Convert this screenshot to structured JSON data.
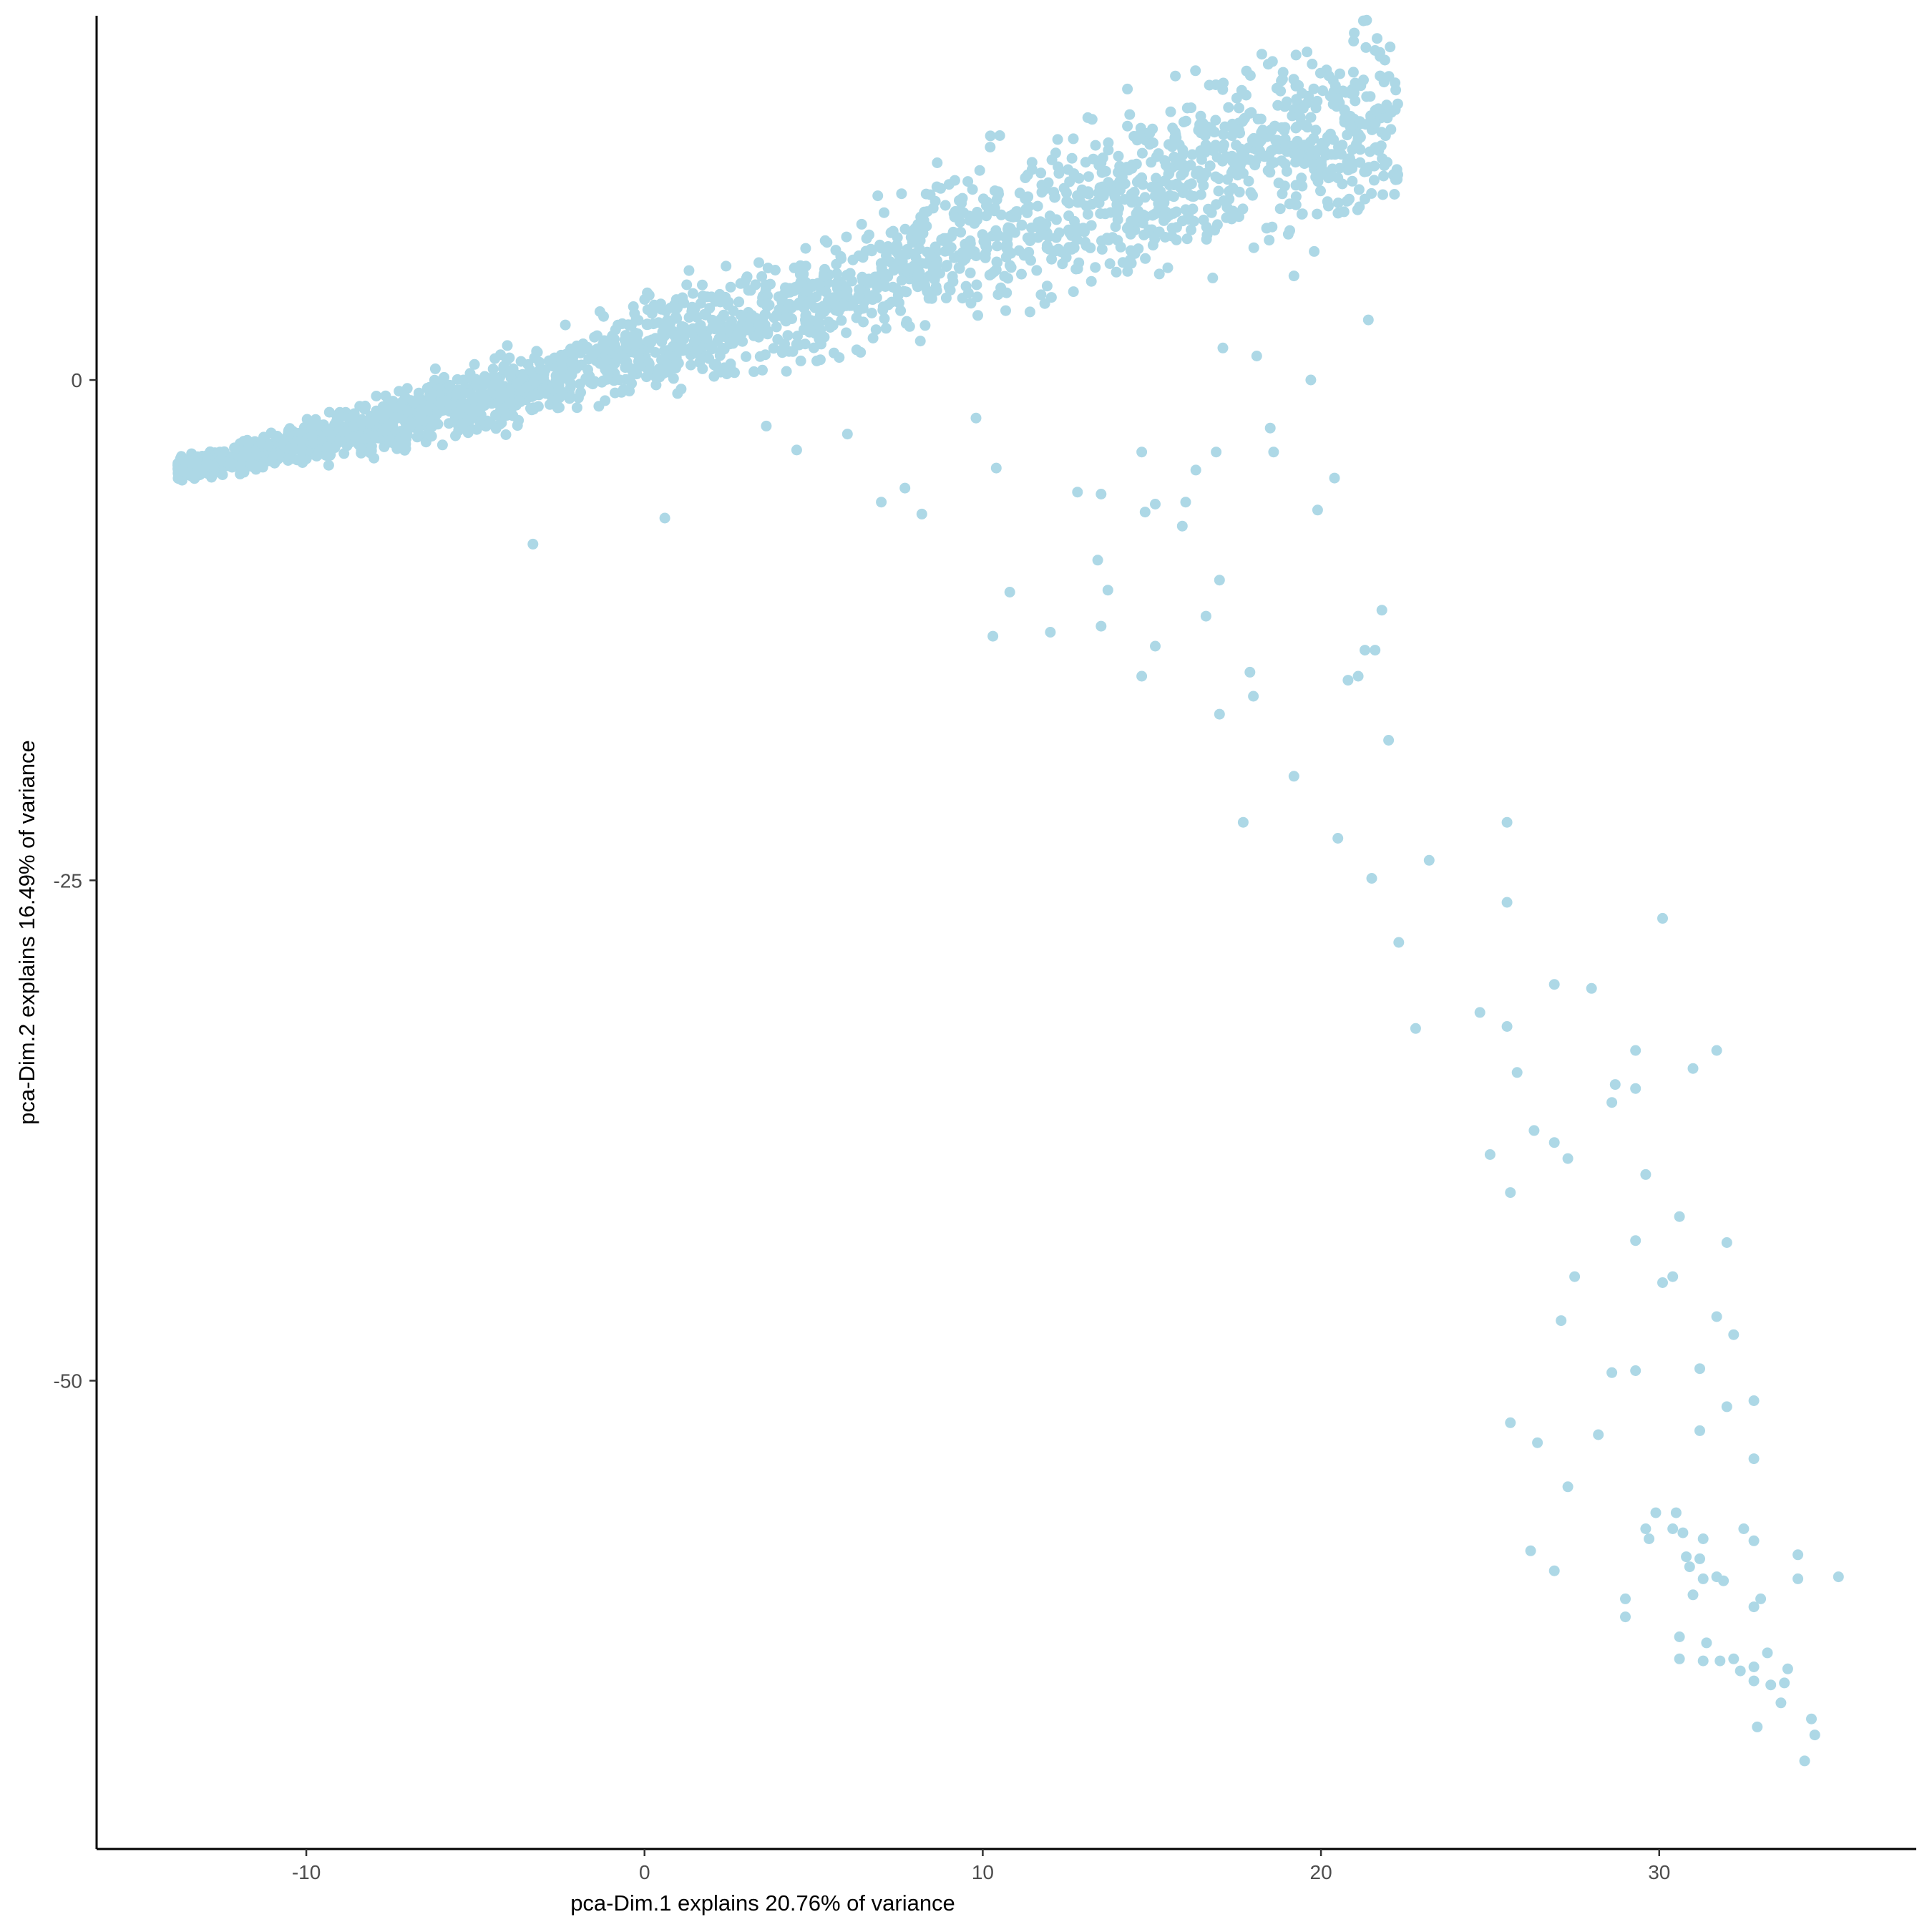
{
  "chart_data": {
    "type": "scatter",
    "title": "",
    "xlabel": "pca-Dim.1 explains 20.76% of variance",
    "ylabel": "pca-Dim.2 explains 16.49% of variance",
    "xlim": [
      -16.2,
      37.6
    ],
    "ylim": [
      -73.4,
      18.2
    ],
    "x_ticks": [
      -10,
      0,
      10,
      20,
      30
    ],
    "x_tick_labels": [
      "-10",
      "0",
      "10",
      "20",
      "30"
    ],
    "y_ticks": [
      0,
      -25,
      -50
    ],
    "y_tick_labels": [
      "0",
      "-25",
      "-50"
    ],
    "grid": false,
    "legend": "none",
    "point_color": "#ADD8E6",
    "main_cluster": {
      "description_of_trend": "dense band of several thousand points rising roughly linearly",
      "x_range": [
        -13.8,
        22.3
      ],
      "spine": [
        [
          -13.5,
          -4.4
        ],
        [
          -10,
          -3.2
        ],
        [
          -5,
          -1.0
        ],
        [
          0,
          1.6
        ],
        [
          5,
          3.8
        ],
        [
          10,
          7.2
        ],
        [
          15,
          9.6
        ],
        [
          18,
          12.0
        ],
        [
          22,
          12.6
        ]
      ]
    },
    "outliers": [
      [
        -3.3,
        -8.2
      ],
      [
        0.6,
        -6.9
      ],
      [
        4.5,
        -3.5
      ],
      [
        6.0,
        -2.7
      ],
      [
        3.6,
        -2.3
      ],
      [
        7.0,
        -6.1
      ],
      [
        7.7,
        -5.4
      ],
      [
        8.2,
        -6.7
      ],
      [
        9.8,
        -1.9
      ],
      [
        10.4,
        -4.4
      ],
      [
        10.8,
        -10.6
      ],
      [
        10.3,
        -12.8
      ],
      [
        12.0,
        -12.6
      ],
      [
        12.8,
        -5.6
      ],
      [
        13.5,
        -5.7
      ],
      [
        13.4,
        -9.0
      ],
      [
        13.7,
        -10.5
      ],
      [
        13.5,
        -12.3
      ],
      [
        14.7,
        -14.8
      ],
      [
        15.1,
        -13.3
      ],
      [
        14.8,
        -6.6
      ],
      [
        15.1,
        -6.2
      ],
      [
        15.9,
        -7.3
      ],
      [
        16.0,
        -6.1
      ],
      [
        14.7,
        -3.6
      ],
      [
        16.3,
        -4.5
      ],
      [
        16.9,
        -3.6
      ],
      [
        16.6,
        -11.8
      ],
      [
        17.0,
        -10.0
      ],
      [
        17.9,
        -14.6
      ],
      [
        18.0,
        -15.8
      ],
      [
        17.0,
        -16.7
      ],
      [
        18.5,
        -2.4
      ],
      [
        18.6,
        -3.6
      ],
      [
        19.9,
        -6.5
      ],
      [
        20.4,
        -4.9
      ],
      [
        19.2,
        -19.8
      ],
      [
        17.7,
        -22.1
      ],
      [
        20.5,
        -22.9
      ],
      [
        20.8,
        -15.0
      ],
      [
        21.1,
        -14.8
      ],
      [
        21.3,
        -13.5
      ],
      [
        21.6,
        -13.5
      ],
      [
        21.8,
        -11.5
      ],
      [
        22.0,
        -18.0
      ],
      [
        21.5,
        -24.9
      ],
      [
        22.3,
        -28.1
      ],
      [
        22.8,
        -32.4
      ],
      [
        23.2,
        -24.0
      ],
      [
        19.7,
        0.0
      ],
      [
        21.4,
        3.0
      ],
      [
        19.2,
        5.2
      ],
      [
        17.1,
        1.6
      ],
      [
        18.1,
        1.2
      ],
      [
        16.8,
        5.1
      ],
      [
        25.5,
        -22.1
      ],
      [
        25.5,
        -26.1
      ],
      [
        24.7,
        -31.6
      ],
      [
        25.5,
        -32.3
      ],
      [
        25.8,
        -34.6
      ],
      [
        26.9,
        -30.2
      ],
      [
        28.0,
        -30.4
      ],
      [
        25.0,
        -38.7
      ],
      [
        26.3,
        -37.5
      ],
      [
        25.6,
        -40.6
      ],
      [
        26.9,
        -38.1
      ],
      [
        27.3,
        -38.9
      ],
      [
        27.1,
        -47.0
      ],
      [
        27.5,
        -44.8
      ],
      [
        28.7,
        -35.2
      ],
      [
        28.6,
        -36.1
      ],
      [
        29.3,
        -33.5
      ],
      [
        29.3,
        -35.4
      ],
      [
        29.6,
        -39.7
      ],
      [
        29.3,
        -43.0
      ],
      [
        30.1,
        -26.9
      ],
      [
        30.6,
        -41.8
      ],
      [
        30.1,
        -45.1
      ],
      [
        30.4,
        -44.8
      ],
      [
        31.0,
        -34.4
      ],
      [
        31.7,
        -33.5
      ],
      [
        32.0,
        -43.1
      ],
      [
        31.7,
        -46.8
      ],
      [
        32.2,
        -47.7
      ],
      [
        31.2,
        -49.4
      ],
      [
        28.6,
        -49.6
      ],
      [
        29.3,
        -49.5
      ],
      [
        28.2,
        -52.7
      ],
      [
        26.4,
        -53.1
      ],
      [
        25.6,
        -52.1
      ],
      [
        27.3,
        -55.3
      ],
      [
        26.2,
        -58.5
      ],
      [
        26.9,
        -59.5
      ],
      [
        29.0,
        -60.9
      ],
      [
        29.0,
        -61.8
      ],
      [
        29.9,
        -56.6
      ],
      [
        29.6,
        -57.4
      ],
      [
        29.7,
        -57.9
      ],
      [
        30.4,
        -57.4
      ],
      [
        30.5,
        -56.6
      ],
      [
        30.7,
        -57.6
      ],
      [
        30.8,
        -58.8
      ],
      [
        30.9,
        -59.3
      ],
      [
        31.3,
        -57.9
      ],
      [
        31.2,
        -58.9
      ],
      [
        31.0,
        -60.7
      ],
      [
        31.3,
        -59.9
      ],
      [
        31.7,
        -59.8
      ],
      [
        31.9,
        -60.0
      ],
      [
        31.2,
        -52.5
      ],
      [
        32.0,
        -51.3
      ],
      [
        32.8,
        -51.0
      ],
      [
        32.8,
        -53.9
      ],
      [
        32.5,
        -57.4
      ],
      [
        32.8,
        -58.0
      ],
      [
        32.8,
        -61.3
      ],
      [
        33.0,
        -60.9
      ],
      [
        34.1,
        -58.7
      ],
      [
        34.1,
        -59.9
      ],
      [
        35.3,
        -59.8
      ],
      [
        30.6,
        -62.8
      ],
      [
        30.6,
        -63.9
      ],
      [
        31.3,
        -64.0
      ],
      [
        31.4,
        -63.1
      ],
      [
        31.8,
        -64.0
      ],
      [
        32.2,
        -63.9
      ],
      [
        32.4,
        -64.5
      ],
      [
        32.8,
        -64.3
      ],
      [
        33.2,
        -63.6
      ],
      [
        33.3,
        -65.2
      ],
      [
        32.8,
        -65.0
      ],
      [
        33.7,
        -65.1
      ],
      [
        33.8,
        -64.4
      ],
      [
        33.6,
        -66.1
      ],
      [
        32.9,
        -67.3
      ],
      [
        34.5,
        -66.9
      ],
      [
        34.6,
        -67.7
      ],
      [
        34.3,
        -69.0
      ]
    ]
  }
}
